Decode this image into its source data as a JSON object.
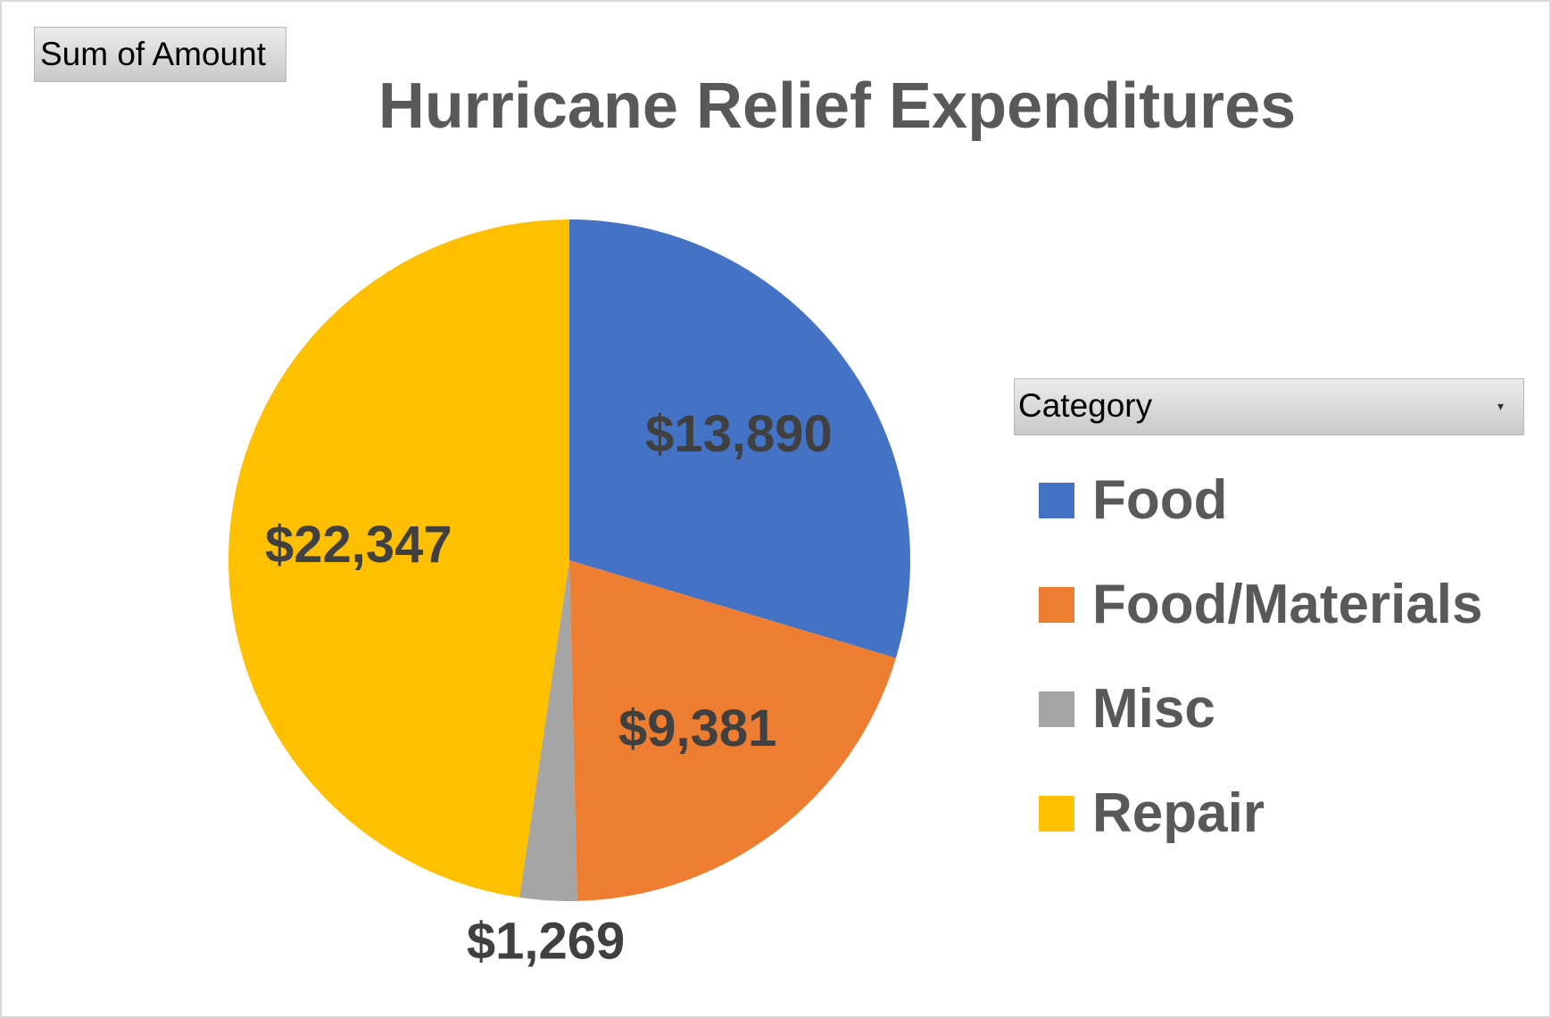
{
  "value_field_button": {
    "label": "Sum of Amount"
  },
  "category_field_button": {
    "label": "Category",
    "icon": "dropdown-arrow-icon"
  },
  "colors": {
    "Food": "#4472c4",
    "Food/Materials": "#ed7d31",
    "Misc": "#a5a5a5",
    "Repair": "#ffc000"
  },
  "chart_data": {
    "type": "pie",
    "title": "Hurricane Relief Expenditures",
    "categories": [
      "Food",
      "Food/Materials",
      "Misc",
      "Repair"
    ],
    "values": [
      13890,
      9381,
      1269,
      22347
    ],
    "data_labels": [
      "$13,890",
      "$9,381",
      "$1,269",
      "$22,347"
    ],
    "legend_title": "Category",
    "legend_position": "right"
  }
}
